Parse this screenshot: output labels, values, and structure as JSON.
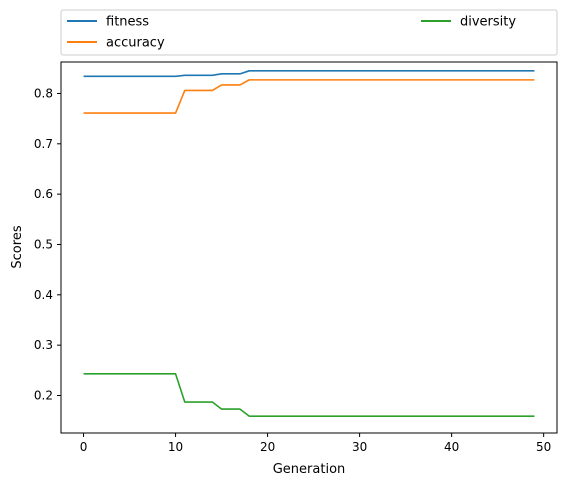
{
  "chart_data": {
    "type": "line",
    "title": "",
    "xlabel": "Generation",
    "ylabel": "Scores",
    "xlim": [
      -2.45,
      51.45
    ],
    "ylim": [
      0.1255,
      0.8625
    ],
    "xticks": [
      0,
      10,
      20,
      30,
      40,
      50
    ],
    "yticks": [
      0.2,
      0.3,
      0.4,
      0.5,
      0.6,
      0.7,
      0.8
    ],
    "xtick_labels": [
      "0",
      "10",
      "20",
      "30",
      "40",
      "50"
    ],
    "ytick_labels": [
      "0.2",
      "0.3",
      "0.4",
      "0.5",
      "0.6",
      "0.7",
      "0.8"
    ],
    "grid": false,
    "legend_position": "above plot, two columns",
    "series": [
      {
        "name": "fitness",
        "color": "#1f77b4",
        "x": [
          0,
          10,
          11,
          14,
          15,
          17,
          18,
          49
        ],
        "y": [
          0.834,
          0.834,
          0.836,
          0.836,
          0.839,
          0.839,
          0.845,
          0.845
        ]
      },
      {
        "name": "accuracy",
        "color": "#ff7f0e",
        "x": [
          0,
          10,
          11,
          14,
          15,
          17,
          18,
          49
        ],
        "y": [
          0.761,
          0.761,
          0.806,
          0.806,
          0.817,
          0.817,
          0.827,
          0.827
        ]
      },
      {
        "name": "diversity",
        "color": "#2ca02c",
        "x": [
          0,
          10,
          11,
          14,
          15,
          17,
          18,
          49
        ],
        "y": [
          0.243,
          0.243,
          0.187,
          0.187,
          0.173,
          0.173,
          0.159,
          0.159
        ]
      }
    ]
  }
}
